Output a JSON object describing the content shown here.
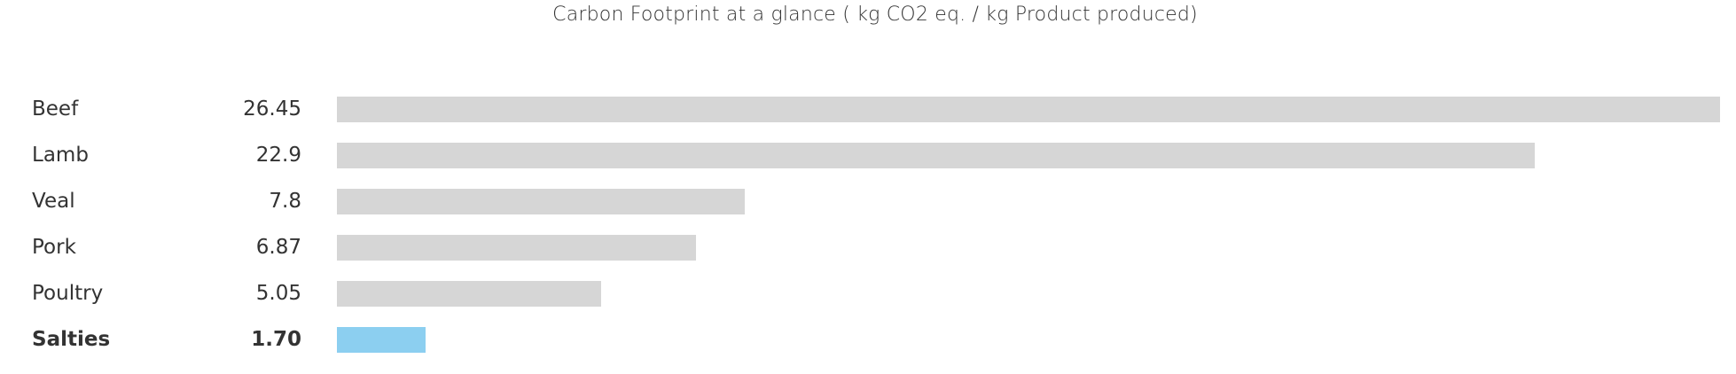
{
  "chart_data": {
    "type": "bar",
    "orientation": "horizontal",
    "title": "Carbon Footprint at a glance ( kg CO2 eq. / kg Product produced)",
    "categories": [
      "Beef",
      "Lamb",
      "Veal",
      "Pork",
      "Poultry",
      "Salties"
    ],
    "value_labels": [
      "26.45",
      "22.9",
      "7.8",
      "6.87",
      "5.05",
      "1.70"
    ],
    "values": [
      26.45,
      22.9,
      7.8,
      6.87,
      5.05,
      1.7
    ],
    "highlight": "Salties",
    "xlim": [
      0,
      26.45
    ],
    "grid": false,
    "colors": {
      "default": "#d6d6d6",
      "highlight": "#8ccff0"
    }
  }
}
